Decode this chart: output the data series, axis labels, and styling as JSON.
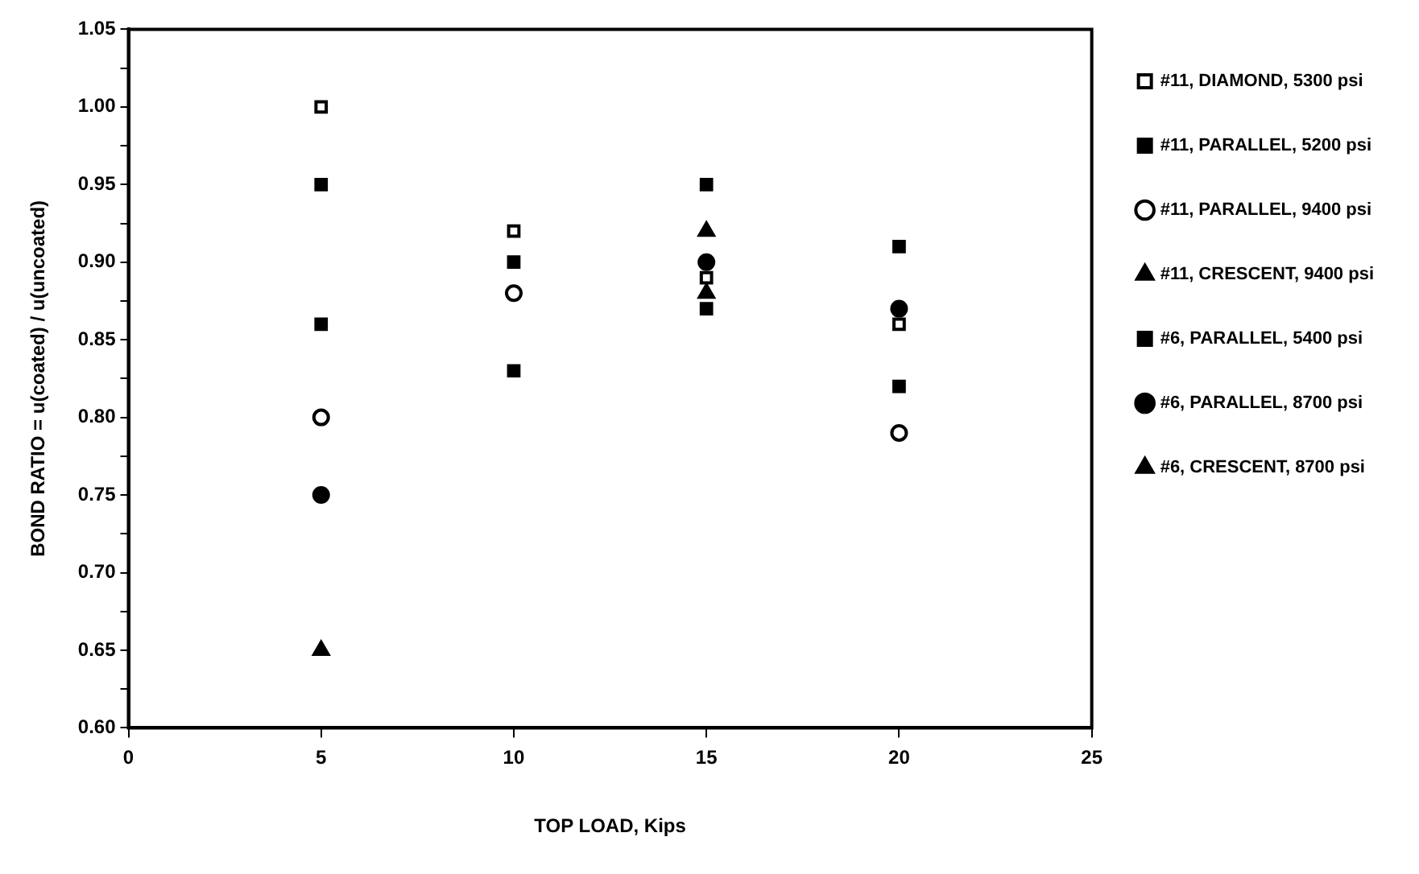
{
  "chart_data": {
    "type": "scatter",
    "xlabel": "TOP LOAD, Kips",
    "ylabel": "BOND RATIO = u(coated) / u(uncoated)",
    "xlim": [
      0,
      25
    ],
    "xticks": [
      0,
      5,
      10,
      15,
      20,
      25
    ],
    "ylim": [
      0.6,
      1.05
    ],
    "yticks": [
      {
        "value": 0.6,
        "label": "0.60"
      },
      {
        "value": 0.625,
        "label": null
      },
      {
        "value": 0.65,
        "label": "0.65"
      },
      {
        "value": 0.675,
        "label": null
      },
      {
        "value": 0.7,
        "label": "0.70"
      },
      {
        "value": 0.725,
        "label": null
      },
      {
        "value": 0.75,
        "label": "0.75"
      },
      {
        "value": 0.775,
        "label": null
      },
      {
        "value": 0.8,
        "label": "0.80"
      },
      {
        "value": 0.825,
        "label": null
      },
      {
        "value": 0.85,
        "label": "0.85"
      },
      {
        "value": 0.875,
        "label": null
      },
      {
        "value": 0.9,
        "label": "0.90"
      },
      {
        "value": 0.925,
        "label": null
      },
      {
        "value": 0.95,
        "label": "0.95"
      },
      {
        "value": 0.975,
        "label": null
      },
      {
        "value": 1.0,
        "label": "1.00"
      },
      {
        "value": 1.025,
        "label": null
      },
      {
        "value": 1.05,
        "label": "1.05"
      }
    ],
    "grid": false,
    "legend": "right",
    "series": [
      {
        "name": "#11, DIAMOND, 5300 psi",
        "color": "#ffffff",
        "marker": "square",
        "x": [
          5,
          10,
          15,
          20
        ],
        "values": [
          1.0,
          0.92,
          0.89,
          0.86
        ]
      },
      {
        "name": "#11, PARALLEL, 5200 psi",
        "color": "#000000",
        "marker": "square",
        "x": [
          5,
          10,
          15,
          20
        ],
        "values": [
          0.95,
          0.9,
          0.87,
          0.82
        ]
      },
      {
        "name": "#11, PARALLEL, 9400 psi",
        "color": "#ffffff",
        "marker": "circle",
        "x": [
          5,
          10,
          20
        ],
        "values": [
          0.8,
          0.88,
          0.79
        ]
      },
      {
        "name": "#11, CRESCENT, 9400 psi",
        "color": "#000000",
        "marker": "triangle",
        "x": [
          15
        ],
        "values": [
          0.92
        ]
      },
      {
        "name": "#6, PARALLEL, 5400 psi",
        "color": "#000000",
        "marker": "square",
        "x": [
          5,
          10,
          15,
          20
        ],
        "values": [
          0.86,
          0.83,
          0.95,
          0.91
        ]
      },
      {
        "name": "#6, PARALLEL, 8700 psi",
        "color": "#000000",
        "marker": "circle",
        "x": [
          5,
          15,
          20
        ],
        "values": [
          0.75,
          0.9,
          0.87
        ]
      },
      {
        "name": "#6, CRESCENT, 8700 psi",
        "color": "#000000",
        "marker": "triangle",
        "x": [
          5,
          15
        ],
        "values": [
          0.65,
          0.88
        ]
      }
    ]
  }
}
